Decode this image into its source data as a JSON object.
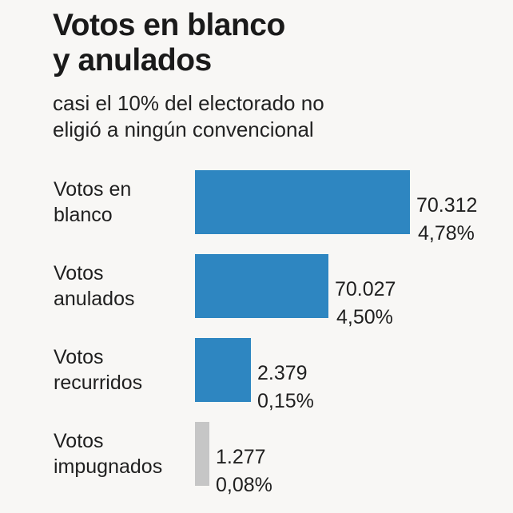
{
  "title_lines": [
    "Votos en blanco",
    "y anulados"
  ],
  "subtitle_lines": [
    "casi el 10% del electorado no",
    "eligió a ningún convencional"
  ],
  "chart_data": {
    "type": "bar",
    "orientation": "horizontal",
    "title": "Votos en blanco y anulados",
    "subtitle": "casi el 10% del electorado no eligió a ningún convencional",
    "categories": [
      [
        "Votos en",
        "blanco"
      ],
      [
        "Votos",
        "anulados"
      ],
      [
        "Votos",
        "recurridos"
      ],
      [
        "Votos",
        "impugnados"
      ]
    ],
    "values": [
      70312,
      70027,
      2379,
      1277
    ],
    "value_labels": [
      "70.312",
      "70.027",
      "2.379",
      "1.277"
    ],
    "percent_labels": [
      "4,78%",
      "4,50%",
      "0,15%",
      "0,08%"
    ],
    "percents": [
      4.78,
      4.5,
      0.15,
      0.08
    ],
    "colors": [
      "#2e86c1",
      "#2e86c1",
      "#2e86c1",
      "#c6c6c6"
    ],
    "grid": false,
    "xlabel": "",
    "ylabel": ""
  }
}
